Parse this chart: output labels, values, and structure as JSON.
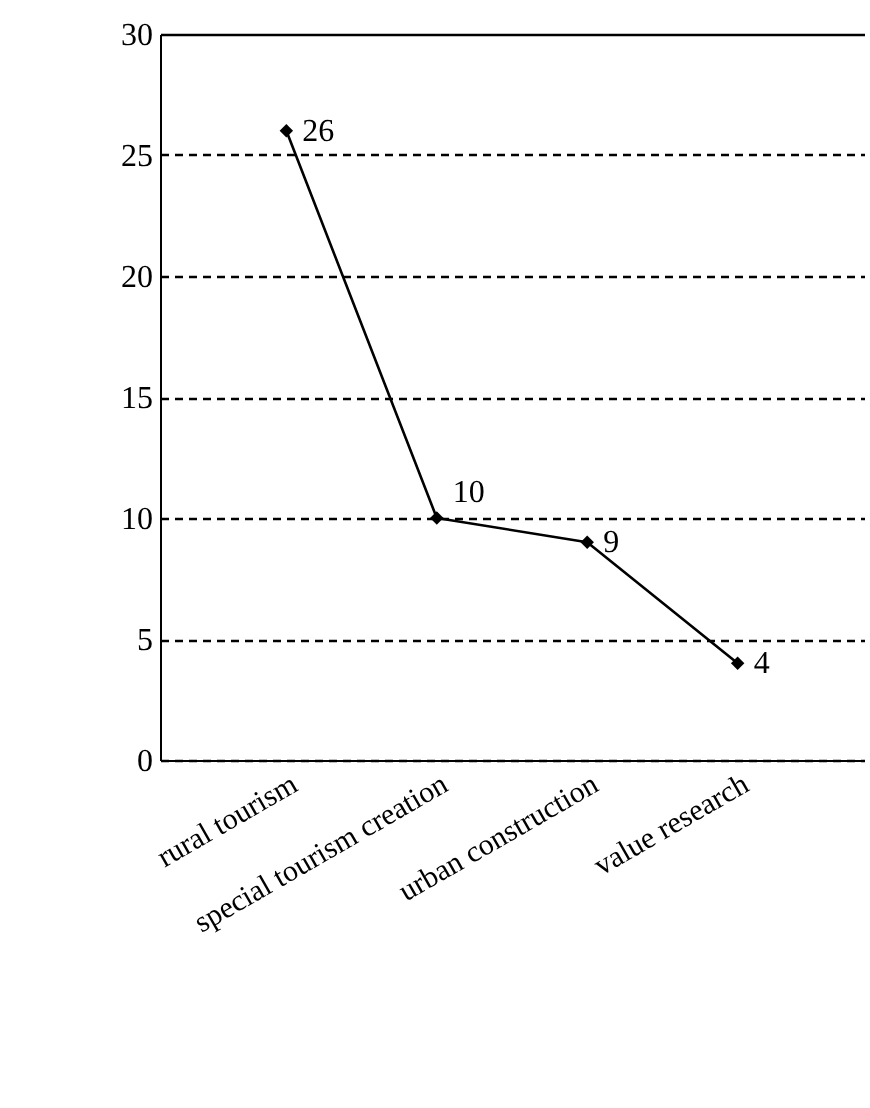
{
  "chart_data": {
    "type": "line",
    "categories": [
      "rural tourism",
      "special tourism creation",
      "urban construction",
      "value research"
    ],
    "series": [
      {
        "color": "#000000",
        "values": [
          26,
          10,
          9,
          4
        ]
      }
    ],
    "ylim": [
      0,
      30
    ],
    "yticks": [
      0,
      5,
      10,
      15,
      20,
      25,
      30
    ],
    "grid": "y",
    "marker": "diamond",
    "line_style": "solid",
    "data_labels": true
  }
}
